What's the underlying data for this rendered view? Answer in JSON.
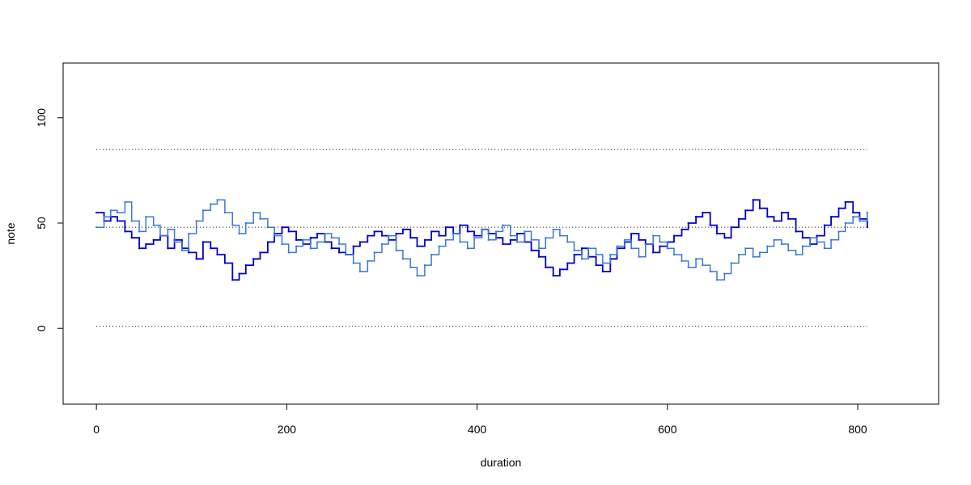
{
  "chart_data": {
    "type": "line",
    "title": "",
    "xlabel": "duration",
    "ylabel": "note",
    "xlim": [
      -35,
      885
    ],
    "ylim": [
      -36,
      126
    ],
    "x_ticks": [
      0,
      200,
      400,
      600,
      800
    ],
    "y_ticks": [
      0,
      50,
      100
    ],
    "grid": false,
    "reference_lines": [
      1,
      48,
      85
    ],
    "reference_line_range": [
      0,
      810
    ],
    "series": [
      {
        "color": "#0000cd",
        "step": true,
        "x": [
          0,
          8,
          15,
          22,
          30,
          37,
          45,
          52,
          60,
          67,
          75,
          82,
          90,
          97,
          105,
          112,
          120,
          127,
          135,
          143,
          150,
          157,
          165,
          172,
          180,
          187,
          195,
          202,
          210,
          217,
          225,
          232,
          240,
          247,
          255,
          262,
          270,
          277,
          285,
          292,
          300,
          307,
          315,
          322,
          330,
          337,
          345,
          352,
          360,
          367,
          375,
          382,
          390,
          397,
          405,
          412,
          420,
          427,
          435,
          442,
          450,
          457,
          465,
          472,
          480,
          487,
          495,
          502,
          510,
          517,
          525,
          532,
          540,
          547,
          555,
          562,
          570,
          577,
          585,
          592,
          600,
          607,
          615,
          622,
          630,
          637,
          645,
          652,
          660,
          667,
          675,
          682,
          690,
          697,
          705,
          712,
          720,
          727,
          735,
          742,
          750,
          757,
          765,
          772,
          780,
          787,
          795,
          802,
          810
        ],
        "y": [
          55,
          51,
          53,
          51,
          46,
          43,
          38,
          40,
          42,
          44,
          38,
          42,
          38,
          36,
          33,
          41,
          38,
          35,
          31,
          23,
          26,
          30,
          33,
          36,
          41,
          45,
          48,
          46,
          42,
          40,
          43,
          45,
          41,
          38,
          36,
          35,
          39,
          41,
          44,
          46,
          44,
          42,
          45,
          47,
          43,
          39,
          42,
          46,
          44,
          48,
          45,
          49,
          46,
          44,
          47,
          45,
          43,
          40,
          42,
          45,
          41,
          37,
          34,
          29,
          25,
          28,
          31,
          35,
          38,
          34,
          30,
          27,
          33,
          38,
          41,
          45,
          42,
          40,
          36,
          39,
          41,
          44,
          47,
          50,
          53,
          55,
          49,
          45,
          43,
          48,
          52,
          56,
          61,
          57,
          53,
          51,
          55,
          52,
          46,
          43,
          40,
          44,
          49,
          53,
          57,
          60,
          55,
          52,
          48
        ]
      },
      {
        "color": "#3a78d6",
        "step": true,
        "x": [
          0,
          8,
          15,
          22,
          30,
          37,
          45,
          52,
          60,
          67,
          75,
          82,
          90,
          97,
          105,
          112,
          120,
          127,
          135,
          143,
          150,
          157,
          165,
          172,
          180,
          187,
          195,
          202,
          210,
          217,
          225,
          232,
          240,
          247,
          255,
          262,
          270,
          277,
          285,
          292,
          300,
          307,
          315,
          322,
          330,
          337,
          345,
          352,
          360,
          367,
          375,
          382,
          390,
          397,
          405,
          412,
          420,
          427,
          435,
          442,
          450,
          457,
          465,
          472,
          480,
          487,
          495,
          502,
          510,
          517,
          525,
          532,
          540,
          547,
          555,
          562,
          570,
          577,
          585,
          592,
          600,
          607,
          615,
          622,
          630,
          637,
          645,
          652,
          660,
          667,
          675,
          682,
          690,
          697,
          705,
          712,
          720,
          727,
          735,
          742,
          750,
          757,
          765,
          772,
          780,
          787,
          795,
          802,
          810
        ],
        "y": [
          48,
          53,
          56,
          55,
          60,
          51,
          46,
          53,
          49,
          44,
          47,
          41,
          37,
          45,
          51,
          56,
          59,
          61,
          55,
          49,
          45,
          50,
          55,
          52,
          48,
          44,
          40,
          36,
          39,
          42,
          38,
          41,
          45,
          43,
          40,
          35,
          31,
          27,
          32,
          36,
          40,
          44,
          37,
          33,
          29,
          25,
          30,
          35,
          39,
          42,
          45,
          41,
          38,
          43,
          47,
          42,
          46,
          49,
          44,
          41,
          46,
          42,
          38,
          43,
          47,
          44,
          41,
          37,
          33,
          38,
          35,
          31,
          35,
          39,
          42,
          38,
          34,
          40,
          44,
          41,
          38,
          35,
          32,
          29,
          33,
          30,
          27,
          23,
          26,
          31,
          35,
          38,
          34,
          36,
          39,
          42,
          40,
          37,
          35,
          39,
          43,
          41,
          38,
          42,
          46,
          50,
          53,
          51,
          55
        ]
      }
    ]
  }
}
